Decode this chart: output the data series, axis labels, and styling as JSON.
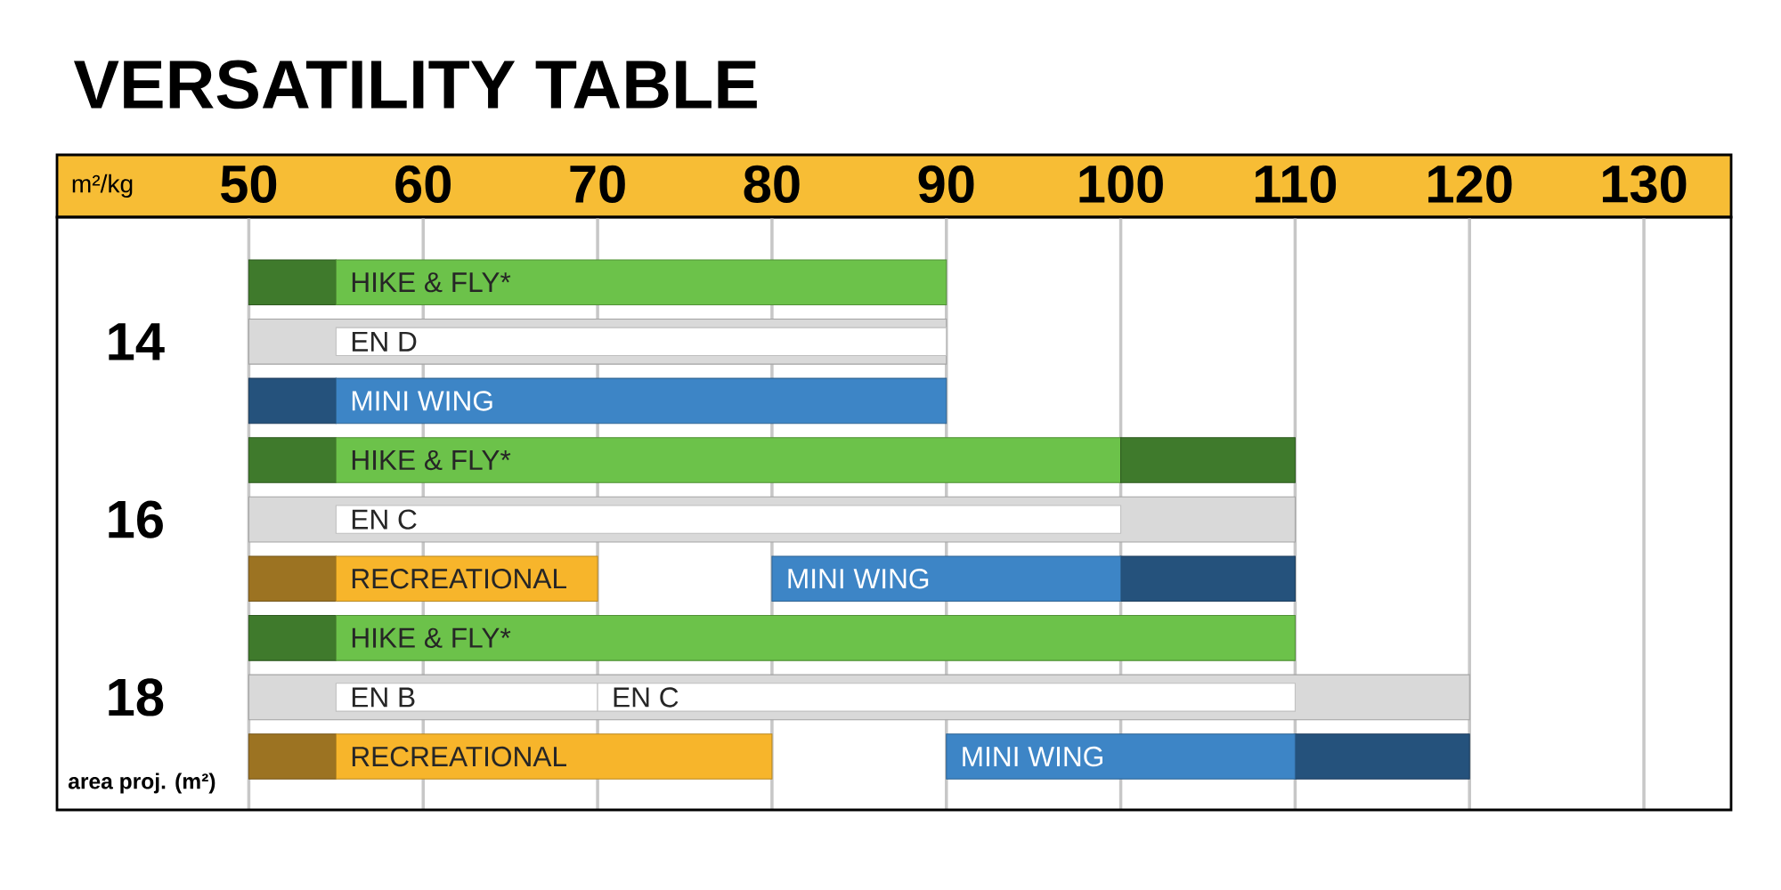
{
  "chart_data": {
    "type": "bar",
    "orientation": "horizontal",
    "title": "VERSATILITY TABLE",
    "xlabel": "m²/kg",
    "ylabel": "area proj. (m²)",
    "categories": [
      null,
      "14",
      null,
      null,
      "16",
      null,
      null,
      "18",
      null
    ],
    "xlim": [
      39,
      135
    ],
    "xticks": [
      50,
      60,
      70,
      80,
      90,
      100,
      110,
      120,
      130
    ],
    "grid": "x",
    "series": [
      {
        "color": "#d9d9d9",
        "base": [
          null,
          50,
          null,
          null,
          50,
          null,
          null,
          50,
          null
        ],
        "values": [
          null,
          40,
          null,
          null,
          60,
          null,
          null,
          70,
          null
        ]
      },
      {
        "color": "#3f7a2c",
        "base": [
          50,
          null,
          null,
          50,
          null,
          null,
          50,
          null,
          null
        ],
        "values": [
          5,
          null,
          null,
          5,
          null,
          null,
          5,
          null,
          null
        ]
      },
      {
        "color": "#6cc24a",
        "base": [
          55,
          null,
          null,
          55,
          null,
          null,
          55,
          null,
          null
        ],
        "values": [
          35,
          null,
          null,
          45,
          null,
          null,
          55,
          null,
          null
        ],
        "value_labels": [
          "HIKE & FLY*",
          null,
          null,
          "HIKE & FLY*",
          null,
          null,
          "HIKE & FLY*",
          null,
          null
        ]
      },
      {
        "color": "#3f7a2c",
        "base": [
          null,
          null,
          null,
          100,
          null,
          null,
          null,
          null,
          null
        ],
        "values": [
          null,
          null,
          null,
          10,
          null,
          null,
          null,
          null,
          null
        ]
      },
      {
        "color": "#ffffff",
        "base": [
          null,
          55,
          null,
          null,
          55,
          null,
          null,
          55,
          null
        ],
        "values": [
          null,
          35,
          null,
          null,
          45,
          null,
          null,
          15,
          null
        ],
        "value_labels": [
          null,
          "EN D",
          null,
          null,
          "EN C",
          null,
          null,
          "EN B",
          null
        ]
      },
      {
        "color": "#ffffff",
        "base": [
          null,
          null,
          null,
          null,
          null,
          null,
          null,
          70,
          null
        ],
        "values": [
          null,
          null,
          null,
          null,
          null,
          null,
          null,
          40,
          null
        ],
        "value_labels": [
          null,
          null,
          null,
          null,
          null,
          null,
          null,
          "EN C",
          null
        ]
      },
      {
        "color": "#25527c",
        "base": [
          null,
          null,
          50,
          null,
          null,
          100,
          null,
          null,
          110
        ],
        "values": [
          null,
          null,
          5,
          null,
          null,
          10,
          null,
          null,
          10
        ]
      },
      {
        "color": "#3d85c6",
        "base": [
          null,
          null,
          55,
          null,
          null,
          80,
          null,
          null,
          90
        ],
        "values": [
          null,
          null,
          35,
          null,
          null,
          20,
          null,
          null,
          20
        ],
        "value_labels": [
          null,
          null,
          "MINI WING",
          null,
          null,
          "MINI WING",
          null,
          null,
          "MINI WING"
        ]
      },
      {
        "color": "#9c7322",
        "base": [
          null,
          null,
          null,
          null,
          null,
          50,
          null,
          null,
          50
        ],
        "values": [
          null,
          null,
          null,
          null,
          null,
          5,
          null,
          null,
          5
        ]
      },
      {
        "color": "#f7b52b",
        "base": [
          null,
          null,
          null,
          null,
          null,
          55,
          null,
          null,
          55
        ],
        "values": [
          null,
          null,
          null,
          null,
          null,
          15,
          null,
          null,
          25
        ],
        "value_labels": [
          null,
          null,
          null,
          null,
          null,
          "RECREATIONAL",
          null,
          null,
          "RECREATIONAL"
        ]
      }
    ]
  }
}
